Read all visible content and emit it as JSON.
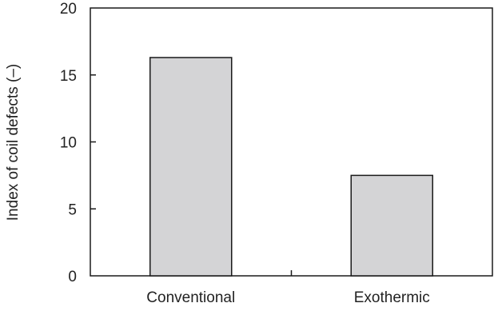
{
  "chart_data": {
    "type": "bar",
    "categories": [
      "Conventional",
      "Exothermic"
    ],
    "values": [
      16.3,
      7.5
    ],
    "xlabel": "",
    "ylabel": "Index of coil defects (–)",
    "ylim": [
      0,
      20
    ],
    "yticks": [
      "0",
      "5",
      "10",
      "15",
      "20"
    ],
    "grid": false,
    "legend": "none",
    "colors": {
      "bar_fill": "#d4d4d6",
      "bar_stroke": "#1a1a1a",
      "axis": "#1a1a1a"
    }
  }
}
